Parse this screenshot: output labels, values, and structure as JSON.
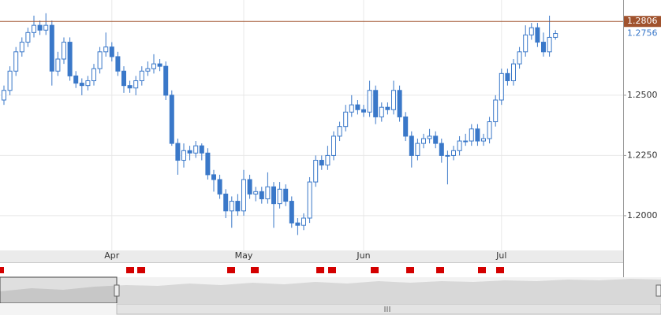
{
  "chart_data": {
    "type": "candlestick",
    "categories": [
      null,
      null,
      null,
      null,
      null,
      null,
      null,
      null,
      null,
      null,
      null,
      null,
      null,
      null,
      null,
      null,
      null,
      null,
      "Apr",
      null,
      null,
      null,
      null,
      null,
      null,
      null,
      null,
      null,
      null,
      null,
      null,
      null,
      null,
      null,
      null,
      null,
      null,
      null,
      null,
      null,
      "May",
      null,
      null,
      null,
      null,
      null,
      null,
      null,
      null,
      null,
      null,
      null,
      null,
      null,
      null,
      null,
      null,
      null,
      null,
      null,
      "Jun",
      null,
      null,
      null,
      null,
      null,
      null,
      null,
      null,
      null,
      null,
      null,
      null,
      null,
      null,
      null,
      null,
      null,
      null,
      null,
      null,
      null,
      null,
      "Jul",
      null,
      null,
      null,
      null,
      null,
      null,
      null,
      null,
      null
    ],
    "open": [
      1.248,
      1.252,
      1.26,
      1.268,
      1.272,
      1.276,
      1.279,
      1.277,
      1.279,
      1.26,
      1.265,
      1.272,
      1.258,
      1.255,
      1.254,
      1.256,
      1.261,
      1.268,
      1.27,
      1.266,
      1.26,
      1.254,
      1.253,
      1.256,
      1.26,
      1.261,
      1.263,
      1.262,
      1.25,
      1.23,
      1.223,
      1.227,
      1.226,
      1.229,
      1.226,
      1.217,
      1.215,
      1.209,
      1.202,
      1.206,
      1.202,
      1.215,
      1.209,
      1.21,
      1.207,
      1.212,
      1.205,
      1.211,
      1.206,
      1.197,
      1.196,
      1.199,
      1.214,
      1.223,
      1.221,
      1.225,
      1.233,
      1.237,
      1.243,
      1.246,
      1.244,
      1.243,
      1.252,
      1.241,
      1.245,
      1.244,
      1.252,
      1.241,
      1.233,
      1.225,
      1.23,
      1.232,
      1.233,
      1.23,
      1.225,
      1.225,
      1.227,
      1.231,
      1.231,
      1.236,
      1.231,
      1.232,
      1.239,
      1.248,
      1.259,
      1.256,
      1.263,
      1.268,
      1.275,
      1.278,
      1.272,
      1.268,
      1.274
    ],
    "high": [
      1.254,
      1.262,
      1.27,
      1.274,
      1.278,
      1.283,
      1.281,
      1.284,
      1.281,
      1.268,
      1.274,
      1.274,
      1.26,
      1.257,
      1.258,
      1.263,
      1.27,
      1.276,
      1.272,
      1.268,
      1.262,
      1.256,
      1.258,
      1.262,
      1.264,
      1.267,
      1.265,
      1.264,
      1.252,
      1.232,
      1.23,
      1.229,
      1.231,
      1.23,
      1.228,
      1.219,
      1.217,
      1.211,
      1.208,
      1.209,
      1.219,
      1.217,
      1.212,
      1.212,
      1.218,
      1.214,
      1.214,
      1.213,
      1.208,
      1.199,
      1.201,
      1.216,
      1.225,
      1.225,
      1.229,
      1.235,
      1.239,
      1.246,
      1.25,
      1.248,
      1.246,
      1.256,
      1.254,
      1.247,
      1.247,
      1.256,
      1.254,
      1.243,
      1.235,
      1.232,
      1.234,
      1.236,
      1.235,
      1.232,
      1.227,
      1.229,
      1.233,
      1.234,
      1.238,
      1.238,
      1.234,
      1.241,
      1.25,
      1.261,
      1.261,
      1.265,
      1.27,
      1.279,
      1.28,
      1.28,
      1.276,
      1.283,
      1.277
    ],
    "low": [
      1.246,
      1.25,
      1.258,
      1.266,
      1.27,
      1.274,
      1.275,
      1.275,
      1.254,
      1.258,
      1.263,
      1.256,
      1.253,
      1.25,
      1.252,
      1.254,
      1.259,
      1.266,
      1.264,
      1.258,
      1.251,
      1.251,
      1.25,
      1.254,
      1.258,
      1.259,
      1.26,
      1.248,
      1.229,
      1.217,
      1.22,
      1.223,
      1.224,
      1.223,
      1.215,
      1.21,
      1.207,
      1.199,
      1.195,
      1.2,
      1.2,
      1.207,
      1.206,
      1.205,
      1.205,
      1.195,
      1.203,
      1.204,
      1.195,
      1.192,
      1.194,
      1.197,
      1.212,
      1.219,
      1.219,
      1.223,
      1.231,
      1.235,
      1.241,
      1.242,
      1.241,
      1.241,
      1.238,
      1.239,
      1.242,
      1.242,
      1.239,
      1.231,
      1.22,
      1.223,
      1.228,
      1.23,
      1.228,
      1.222,
      1.213,
      1.223,
      1.225,
      1.229,
      1.229,
      1.229,
      1.229,
      1.23,
      1.237,
      1.246,
      1.254,
      1.254,
      1.261,
      1.266,
      1.273,
      1.27,
      1.266,
      1.266,
      1.273
    ],
    "close": [
      1.252,
      1.26,
      1.268,
      1.272,
      1.276,
      1.279,
      1.277,
      1.279,
      1.26,
      1.265,
      1.272,
      1.258,
      1.255,
      1.254,
      1.256,
      1.261,
      1.268,
      1.27,
      1.266,
      1.26,
      1.254,
      1.253,
      1.256,
      1.26,
      1.261,
      1.263,
      1.262,
      1.25,
      1.23,
      1.223,
      1.227,
      1.226,
      1.229,
      1.226,
      1.217,
      1.215,
      1.209,
      1.202,
      1.206,
      1.202,
      1.215,
      1.209,
      1.21,
      1.207,
      1.212,
      1.205,
      1.211,
      1.206,
      1.197,
      1.196,
      1.199,
      1.214,
      1.223,
      1.221,
      1.225,
      1.233,
      1.237,
      1.243,
      1.246,
      1.244,
      1.243,
      1.252,
      1.241,
      1.245,
      1.244,
      1.252,
      1.241,
      1.233,
      1.225,
      1.23,
      1.232,
      1.233,
      1.23,
      1.225,
      1.225,
      1.227,
      1.231,
      1.231,
      1.236,
      1.231,
      1.232,
      1.239,
      1.248,
      1.259,
      1.256,
      1.263,
      1.268,
      1.275,
      1.278,
      1.272,
      1.268,
      1.274,
      1.2756
    ],
    "up_color": "#ffffff",
    "down_color": "#3a78c9",
    "outline_color": "#3a78c9",
    "ylim": [
      1.1856,
      1.2895
    ],
    "yticks": [
      {
        "value": 1.2,
        "label": "1.2000"
      },
      {
        "value": 1.225,
        "label": "1.2250"
      },
      {
        "value": 1.25,
        "label": "1.2500"
      }
    ],
    "price_line": {
      "value": 1.2806,
      "label": "1.2806",
      "color": "#a0522d"
    },
    "last_price": {
      "value": 1.2756,
      "label": "1.2756"
    },
    "grid": true
  }
}
